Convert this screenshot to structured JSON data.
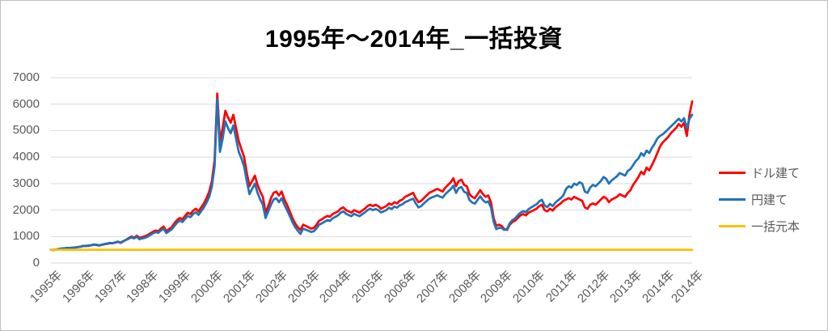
{
  "chart": {
    "title": "1995年～2014年_一括投資"
  },
  "legend": {
    "items": [
      {
        "label": "ドル建て",
        "color": "#FF0000"
      },
      {
        "label": "円建て",
        "color": "#2272B6"
      },
      {
        "label": "一括元本",
        "color": "#FFC000"
      }
    ]
  },
  "colors": {
    "grid": "#D9D9D9",
    "axis_text": "#595959",
    "title_text": "#000000",
    "chart_border": "#BFBFBF",
    "background": "#FFFFFF"
  },
  "chart_data": {
    "type": "line",
    "title": "1995年～2014年_一括投資",
    "xlabel": "",
    "ylabel": "",
    "ylim": [
      0,
      7000
    ],
    "y_ticks": [
      0,
      1000,
      2000,
      3000,
      4000,
      5000,
      6000,
      7000
    ],
    "grid": true,
    "legend_position": "right",
    "x_unit": "month",
    "x_range": "1995-01 to 2014-12, monthly estimates (240 points per series)",
    "x_tick_labels": [
      "1995年",
      "1996年",
      "1997年",
      "1998年",
      "1999年",
      "2000年",
      "2001年",
      "2002年",
      "2003年",
      "2004年",
      "2005年",
      "2006年",
      "2007年",
      "2008年",
      "2009年",
      "2010年",
      "2011年",
      "2012年",
      "2013年",
      "2014年",
      "2014年"
    ],
    "x_tick_month_indices": [
      0,
      12,
      24,
      36,
      48,
      60,
      72,
      84,
      96,
      108,
      120,
      132,
      144,
      156,
      168,
      180,
      192,
      204,
      216,
      228,
      239
    ],
    "series": [
      {
        "name": "ドル建て",
        "color": "#FF0000",
        "values": [
          500,
          490,
          505,
          520,
          540,
          545,
          560,
          575,
          570,
          585,
          605,
          615,
          640,
          655,
          645,
          670,
          690,
          680,
          660,
          685,
          710,
          725,
          750,
          745,
          770,
          800,
          760,
          820,
          880,
          940,
          1000,
          960,
          1030,
          950,
          980,
          1010,
          1050,
          1120,
          1180,
          1230,
          1200,
          1300,
          1380,
          1200,
          1280,
          1350,
          1500,
          1620,
          1700,
          1650,
          1780,
          1900,
          1850,
          1980,
          2050,
          1950,
          2100,
          2250,
          2450,
          2700,
          3100,
          3900,
          6400,
          4600,
          5100,
          5750,
          5500,
          5300,
          5600,
          5100,
          4600,
          4300,
          4000,
          3400,
          2900,
          3100,
          3300,
          2950,
          2700,
          2500,
          1900,
          2150,
          2450,
          2650,
          2700,
          2550,
          2700,
          2400,
          2200,
          1950,
          1700,
          1500,
          1350,
          1250,
          1450,
          1400,
          1350,
          1300,
          1330,
          1450,
          1600,
          1650,
          1720,
          1780,
          1750,
          1850,
          1900,
          1950,
          2050,
          2100,
          2000,
          1950,
          1900,
          2000,
          1950,
          1900,
          1980,
          2050,
          2150,
          2200,
          2150,
          2200,
          2150,
          2050,
          2100,
          2150,
          2250,
          2200,
          2300,
          2250,
          2350,
          2400,
          2500,
          2550,
          2600,
          2650,
          2450,
          2300,
          2350,
          2450,
          2550,
          2650,
          2700,
          2750,
          2800,
          2750,
          2700,
          2850,
          2950,
          3050,
          3200,
          2900,
          3100,
          3150,
          2950,
          2900,
          2600,
          2500,
          2450,
          2600,
          2750,
          2600,
          2500,
          2550,
          2300,
          1700,
          1400,
          1450,
          1400,
          1280,
          1250,
          1450,
          1550,
          1600,
          1700,
          1800,
          1850,
          1800,
          1900,
          1950,
          2000,
          2050,
          2150,
          2200,
          2000,
          1950,
          2050,
          1980,
          2100,
          2180,
          2250,
          2350,
          2400,
          2450,
          2400,
          2500,
          2450,
          2400,
          2350,
          2100,
          2050,
          2200,
          2250,
          2200,
          2300,
          2400,
          2500,
          2450,
          2300,
          2400,
          2450,
          2500,
          2600,
          2550,
          2500,
          2650,
          2750,
          2950,
          3100,
          3250,
          3450,
          3350,
          3600,
          3500,
          3700,
          3900,
          4150,
          4400,
          4550,
          4650,
          4750,
          4900,
          5000,
          5100,
          5250,
          5150,
          5300,
          4800,
          5600,
          6100
        ]
      },
      {
        "name": "円建て",
        "color": "#2272B6",
        "values": [
          500,
          505,
          515,
          535,
          550,
          560,
          575,
          565,
          580,
          590,
          600,
          620,
          650,
          640,
          660,
          680,
          700,
          690,
          670,
          695,
          720,
          740,
          760,
          750,
          780,
          810,
          770,
          830,
          870,
          920,
          970,
          930,
          990,
          900,
          930,
          950,
          990,
          1060,
          1120,
          1170,
          1140,
          1230,
          1300,
          1130,
          1200,
          1270,
          1400,
          1520,
          1600,
          1550,
          1670,
          1780,
          1730,
          1850,
          1920,
          1820,
          1960,
          2100,
          2280,
          2500,
          2900,
          3650,
          6200,
          4200,
          4700,
          5350,
          5100,
          4900,
          5200,
          4700,
          4200,
          3950,
          3650,
          3100,
          2600,
          2800,
          3000,
          2650,
          2400,
          2200,
          1700,
          1950,
          2200,
          2400,
          2450,
          2300,
          2450,
          2200,
          2000,
          1780,
          1550,
          1360,
          1220,
          1100,
          1300,
          1260,
          1220,
          1170,
          1200,
          1310,
          1450,
          1500,
          1560,
          1620,
          1590,
          1690,
          1740,
          1800,
          1900,
          1950,
          1860,
          1810,
          1770,
          1860,
          1810,
          1770,
          1840,
          1910,
          2000,
          2050,
          2000,
          2040,
          2000,
          1910,
          1950,
          2000,
          2090,
          2040,
          2130,
          2090,
          2180,
          2220,
          2300,
          2340,
          2390,
          2430,
          2250,
          2100,
          2150,
          2250,
          2340,
          2430,
          2480,
          2520,
          2560,
          2510,
          2470,
          2600,
          2700,
          2790,
          2920,
          2650,
          2830,
          2870,
          2690,
          2650,
          2380,
          2290,
          2240,
          2380,
          2520,
          2380,
          2290,
          2330,
          2100,
          1560,
          1280,
          1330,
          1320,
          1250,
          1280,
          1500,
          1620,
          1680,
          1800,
          1900,
          1960,
          1920,
          2030,
          2100,
          2160,
          2220,
          2330,
          2390,
          2170,
          2110,
          2230,
          2150,
          2280,
          2370,
          2450,
          2560,
          2800,
          2900,
          2850,
          3000,
          2950,
          3050,
          3000,
          2700,
          2650,
          2850,
          2950,
          2900,
          3000,
          3100,
          3250,
          3180,
          3000,
          3120,
          3200,
          3280,
          3400,
          3350,
          3300,
          3480,
          3550,
          3700,
          3850,
          3950,
          4150,
          4050,
          4250,
          4150,
          4350,
          4500,
          4700,
          4800,
          4860,
          4950,
          5050,
          5150,
          5250,
          5350,
          5450,
          5350,
          5470,
          5100,
          5450,
          5600
        ]
      },
      {
        "name": "一括元本",
        "color": "#FFC000",
        "constant_value": 500
      }
    ]
  }
}
